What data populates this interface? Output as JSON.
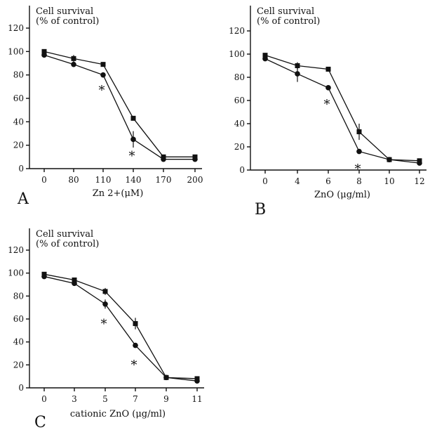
{
  "chart_data": [
    {
      "type": "line",
      "panel": "A",
      "ytitle": [
        "Cell survival",
        "(% of control)"
      ],
      "x_categories": [
        "0",
        "80",
        "110",
        "140",
        "170",
        "200"
      ],
      "xlabel": "Zn 2+(μM)",
      "ylim": [
        0,
        120
      ],
      "yticks": [
        "0",
        "20",
        "40",
        "60",
        "80",
        "100",
        "120"
      ],
      "series": [
        {
          "marker": "square",
          "values": [
            100,
            94,
            89,
            43,
            10,
            10
          ],
          "errors": [
            2,
            3,
            2,
            0,
            0,
            0
          ]
        },
        {
          "marker": "circle",
          "values": [
            97,
            89,
            80,
            25,
            8,
            8
          ],
          "errors": [
            0,
            0,
            0,
            7,
            0,
            0
          ]
        }
      ],
      "annotations": [
        {
          "text": "*",
          "x_index": 2,
          "y": 68
        },
        {
          "text": "*",
          "x_index": 3,
          "y": 12
        }
      ]
    },
    {
      "type": "line",
      "panel": "B",
      "ytitle": [
        "Cell survival",
        "(% of control)"
      ],
      "x_categories": [
        "0",
        "4",
        "6",
        "8",
        "10",
        "12"
      ],
      "xlabel": "ZnO (μg/ml)",
      "ylim": [
        0,
        120
      ],
      "yticks": [
        "0",
        "20",
        "40",
        "60",
        "80",
        "100",
        "120"
      ],
      "series": [
        {
          "marker": "square",
          "values": [
            99,
            90,
            87,
            33,
            9,
            8
          ],
          "errors": [
            2,
            3,
            2,
            7,
            0,
            0
          ]
        },
        {
          "marker": "circle",
          "values": [
            96,
            83,
            71,
            16,
            9,
            6
          ],
          "errors": [
            0,
            7,
            0,
            2,
            0,
            0
          ]
        }
      ],
      "annotations": [
        {
          "text": "*",
          "x_index": 2,
          "y": 58
        },
        {
          "text": "*",
          "x_index": 3,
          "y": 2
        }
      ]
    },
    {
      "type": "line",
      "panel": "C",
      "ytitle": [
        "Cell survival",
        "(% of control)"
      ],
      "x_categories": [
        "0",
        "3",
        "5",
        "7",
        "9",
        "11"
      ],
      "xlabel": "cationic ZnO (μg/ml)",
      "ylim": [
        0,
        120
      ],
      "yticks": [
        "0",
        "20",
        "40",
        "60",
        "80",
        "100",
        "120"
      ],
      "series": [
        {
          "marker": "square",
          "values": [
            99,
            94,
            84,
            56,
            9,
            8
          ],
          "errors": [
            2,
            0,
            3,
            5,
            0,
            2
          ]
        },
        {
          "marker": "circle",
          "values": [
            97,
            91,
            73,
            37,
            9,
            6
          ],
          "errors": [
            0,
            0,
            4,
            0,
            0,
            0
          ]
        }
      ],
      "annotations": [
        {
          "text": "*",
          "x_index": 2,
          "y": 57
        },
        {
          "text": "*",
          "x_index": 3,
          "y": 21
        }
      ]
    }
  ]
}
